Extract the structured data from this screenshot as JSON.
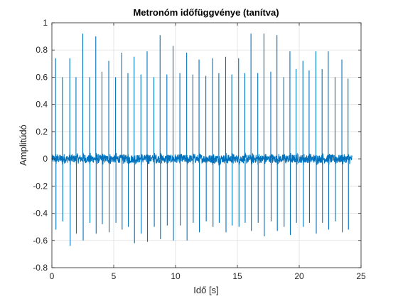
{
  "chart_data": {
    "type": "line",
    "title": "Metronóm időfüggvénye (tanítva)",
    "xlabel": "Idő [s]",
    "ylabel": "Amplitúdó",
    "xlim": [
      0,
      25
    ],
    "ylim": [
      -0.8,
      1
    ],
    "x_ticks": [
      0,
      5,
      10,
      15,
      20,
      25
    ],
    "y_ticks": [
      -0.8,
      -0.6,
      -0.4,
      -0.2,
      0,
      0.2,
      0.4,
      0.6,
      0.8,
      1
    ],
    "x_tick_labels": [
      "0",
      "5",
      "10",
      "15",
      "20",
      "25"
    ],
    "y_tick_labels": [
      "-0.8",
      "-0.6",
      "-0.4",
      "-0.2",
      "0",
      "0.2",
      "0.4",
      "0.6",
      "0.8",
      "1"
    ],
    "grid": true,
    "line_color": "#0072BD",
    "series": [
      {
        "click_times": [
          0.3,
          0.85,
          1.45,
          1.95,
          2.5,
          3.05,
          3.55,
          4.05,
          4.6,
          5.15,
          5.65,
          6.15,
          6.65,
          7.2,
          7.7,
          8.25,
          8.75,
          9.3,
          9.8,
          10.35,
          10.9,
          11.4,
          11.9,
          12.45,
          13.0,
          13.5,
          14.05,
          14.55,
          15.1,
          15.6,
          16.1,
          16.65,
          17.15,
          17.7,
          18.2,
          18.75,
          19.25,
          19.75,
          20.3,
          20.8,
          21.35,
          21.85,
          22.35,
          22.9,
          23.45,
          23.95
        ],
        "peak_values": [
          0.74,
          0.6,
          0.74,
          0.6,
          0.92,
          0.6,
          0.9,
          0.64,
          0.72,
          0.6,
          0.78,
          0.63,
          0.75,
          0.62,
          0.79,
          0.6,
          0.91,
          0.62,
          0.83,
          0.63,
          0.78,
          0.62,
          0.73,
          0.61,
          0.74,
          0.63,
          0.75,
          0.62,
          0.74,
          0.63,
          0.92,
          0.63,
          0.92,
          0.64,
          0.91,
          0.6,
          0.79,
          0.66,
          0.72,
          0.65,
          0.79,
          0.66,
          0.79,
          0.6,
          0.73,
          0.59
        ],
        "trough_values": [
          -0.52,
          -0.46,
          -0.64,
          -0.55,
          -0.6,
          -0.47,
          -0.55,
          -0.48,
          -0.54,
          -0.47,
          -0.52,
          -0.5,
          -0.62,
          -0.55,
          -0.61,
          -0.5,
          -0.59,
          -0.49,
          -0.6,
          -0.49,
          -0.6,
          -0.47,
          -0.54,
          -0.46,
          -0.5,
          -0.47,
          -0.54,
          -0.49,
          -0.5,
          -0.47,
          -0.53,
          -0.47,
          -0.57,
          -0.46,
          -0.53,
          -0.5,
          -0.56,
          -0.47,
          -0.5,
          -0.47,
          -0.55,
          -0.47,
          -0.52,
          -0.46,
          -0.54,
          -0.52
        ],
        "noise_amplitude": 0.03,
        "duration": 24.3
      }
    ]
  }
}
